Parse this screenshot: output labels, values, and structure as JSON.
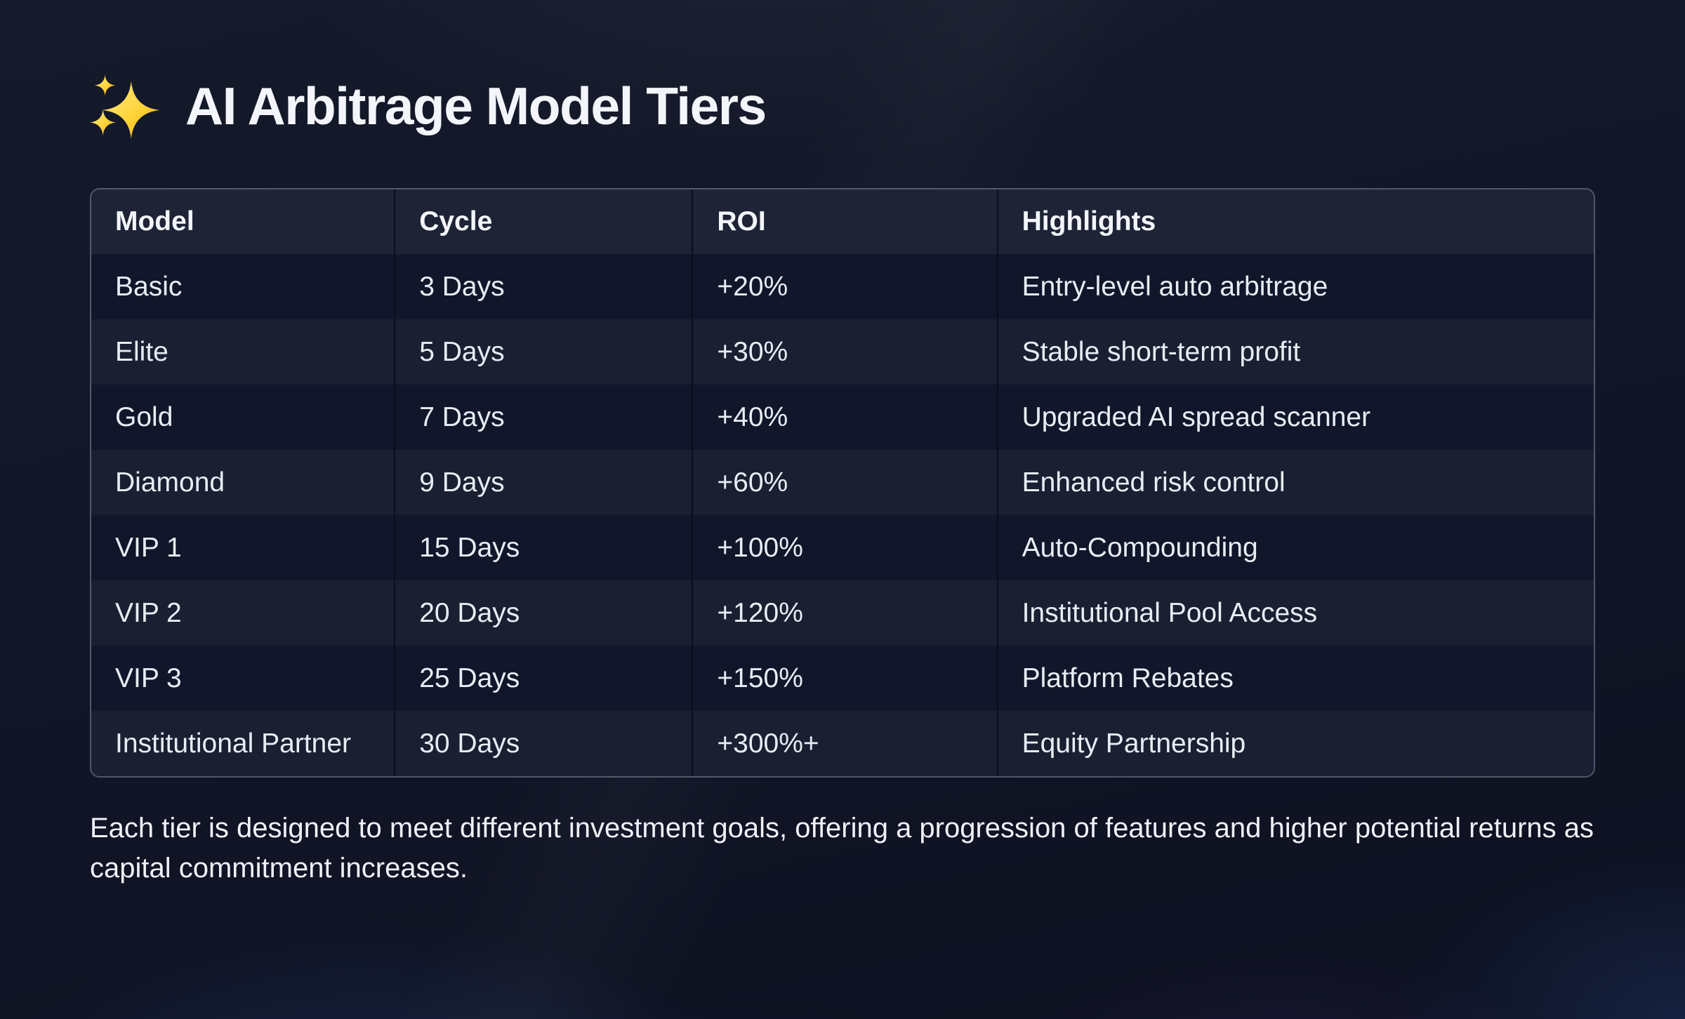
{
  "header": {
    "icon": "sparkles",
    "title": "AI Arbitrage Model Tiers"
  },
  "chart_data": {
    "type": "table",
    "title": "AI Arbitrage Model Tiers",
    "columns": [
      "Model",
      "Cycle",
      "ROI",
      "Highlights"
    ],
    "rows": [
      [
        "Basic",
        "3 Days",
        "+20%",
        "Entry-level auto arbitrage"
      ],
      [
        "Elite",
        "5 Days",
        "+30%",
        "Stable short-term profit"
      ],
      [
        "Gold",
        "7 Days",
        "+40%",
        "Upgraded AI spread scanner"
      ],
      [
        "Diamond",
        "9 Days",
        "+60%",
        "Enhanced risk control"
      ],
      [
        "VIP 1",
        "15 Days",
        "+100%",
        "Auto-Compounding"
      ],
      [
        "VIP 2",
        "20 Days",
        "+120%",
        "Institutional Pool Access"
      ],
      [
        "VIP 3",
        "25 Days",
        "+150%",
        "Platform Rebates"
      ],
      [
        "Institutional Partner",
        "30 Days",
        "+300%+",
        "Equity Partnership"
      ]
    ],
    "caption": "Each tier is designed to meet different investment goals, offering a progression of features and higher potential returns as capital commitment increases.",
    "layout": {
      "grid": false,
      "legend": "none",
      "row_striping": "odd-dark-even-light"
    }
  },
  "colors": {
    "accent_gold": "#FFD43B",
    "page_bg": "#0f1322",
    "header_bg": "#1e2436",
    "row_dark": "#11162a",
    "row_light": "#1a2032",
    "divider": "#0a0e1b",
    "text_primary": "#f3f5fa",
    "text_cell": "#e8ecf4"
  }
}
